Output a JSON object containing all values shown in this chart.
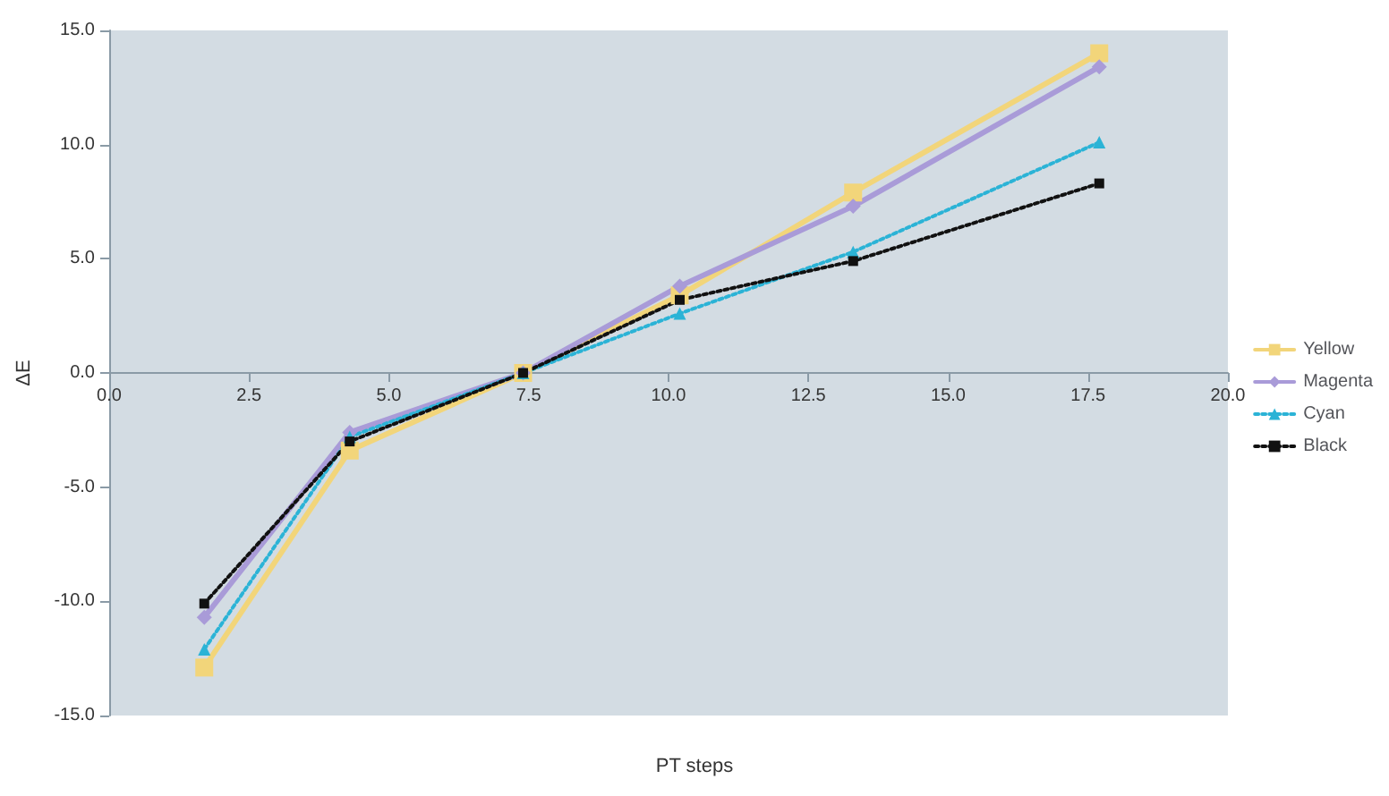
{
  "chart_data": {
    "type": "line",
    "xlabel": "PT steps",
    "ylabel": "ΔE",
    "x": [
      1.7,
      4.3,
      7.4,
      10.2,
      13.3,
      17.7
    ],
    "series": [
      {
        "name": "Yellow",
        "color": "#f2d57a",
        "marker": "square",
        "line_style": "solid",
        "values": [
          -12.9,
          -3.4,
          0,
          3.4,
          7.9,
          14.0
        ]
      },
      {
        "name": "Magenta",
        "color": "#a99bd8",
        "marker": "diamond",
        "line_style": "solid",
        "values": [
          -10.7,
          -2.6,
          0,
          3.8,
          7.3,
          13.4
        ]
      },
      {
        "name": "Cyan",
        "color": "#2bb3d6",
        "marker": "triangle",
        "line_style": "dotted",
        "values": [
          -12.1,
          -2.8,
          0,
          2.6,
          5.3,
          10.1
        ]
      },
      {
        "name": "Black",
        "color": "#111111",
        "marker": "square",
        "line_style": "dotted",
        "values": [
          -10.1,
          -3.0,
          0,
          3.2,
          4.9,
          8.3
        ]
      }
    ],
    "xlim": [
      0,
      20
    ],
    "xticks": [
      {
        "value": 0,
        "label": "0.0"
      },
      {
        "value": 2.5,
        "label": "2.5"
      },
      {
        "value": 5,
        "label": "5.0"
      },
      {
        "value": 7.5,
        "label": "7.5"
      },
      {
        "value": 10,
        "label": "10.0"
      },
      {
        "value": 12.5,
        "label": "12.5"
      },
      {
        "value": 15,
        "label": "15.0"
      },
      {
        "value": 17.5,
        "label": "17.5"
      },
      {
        "value": 20,
        "label": "20.0"
      }
    ],
    "ylim": [
      -15,
      15
    ],
    "yticks": [
      {
        "value": -15,
        "label": "-15.0"
      },
      {
        "value": -10,
        "label": "-10.0"
      },
      {
        "value": -5,
        "label": "-5.0"
      },
      {
        "value": 0,
        "label": "0.0"
      },
      {
        "value": 5,
        "label": "5.0"
      },
      {
        "value": 10,
        "label": "10.0"
      },
      {
        "value": 15,
        "label": "15.0"
      }
    ],
    "grid": false,
    "legend": "right"
  }
}
